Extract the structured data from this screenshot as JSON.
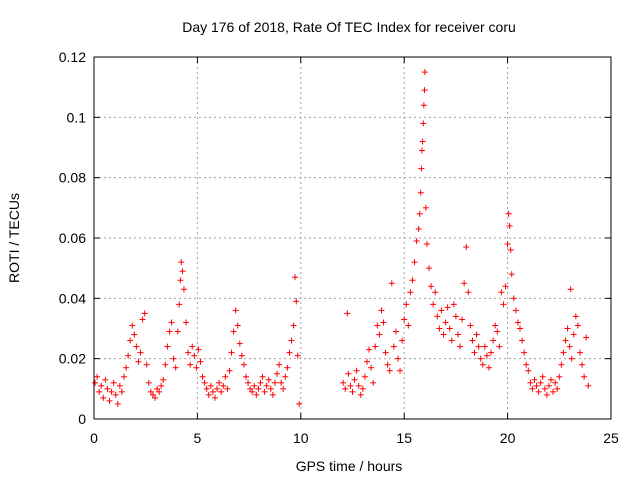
{
  "chart_data": {
    "type": "scatter",
    "title": "Day 176 of 2018, Rate Of TEC Index for receiver coru",
    "xlabel": "GPS time / hours",
    "ylabel": "ROTI / TECUs",
    "xlim": [
      0,
      25
    ],
    "ylim": [
      0,
      0.12
    ],
    "xticks": [
      0,
      5,
      10,
      15,
      20,
      25
    ],
    "xtick_labels": [
      "0",
      "5",
      "10",
      "15",
      "20",
      "25"
    ],
    "yticks": [
      0,
      0.02,
      0.04,
      0.06,
      0.08,
      0.1,
      0.12
    ],
    "ytick_labels": [
      "0",
      "0.02",
      "0.04",
      "0.06",
      "0.08",
      "0.1",
      "0.12"
    ],
    "grid": true,
    "marker": "+",
    "color": "#ff0000",
    "series": [
      {
        "name": "ROTI",
        "points": [
          [
            0.05,
            0.012
          ],
          [
            0.15,
            0.014
          ],
          [
            0.25,
            0.009
          ],
          [
            0.35,
            0.011
          ],
          [
            0.45,
            0.007
          ],
          [
            0.55,
            0.013
          ],
          [
            0.65,
            0.01
          ],
          [
            0.75,
            0.006
          ],
          [
            0.85,
            0.009
          ],
          [
            0.95,
            0.012
          ],
          [
            1.05,
            0.008
          ],
          [
            1.15,
            0.005
          ],
          [
            1.25,
            0.011
          ],
          [
            1.35,
            0.009
          ],
          [
            1.45,
            0.014
          ],
          [
            1.55,
            0.017
          ],
          [
            1.65,
            0.021
          ],
          [
            1.75,
            0.026
          ],
          [
            1.85,
            0.031
          ],
          [
            1.95,
            0.028
          ],
          [
            2.05,
            0.024
          ],
          [
            2.15,
            0.019
          ],
          [
            2.25,
            0.022
          ],
          [
            2.35,
            0.033
          ],
          [
            2.45,
            0.035
          ],
          [
            2.55,
            0.018
          ],
          [
            2.65,
            0.012
          ],
          [
            2.75,
            0.009
          ],
          [
            2.85,
            0.008
          ],
          [
            2.95,
            0.007
          ],
          [
            3.05,
            0.01
          ],
          [
            3.15,
            0.009
          ],
          [
            3.25,
            0.011
          ],
          [
            3.35,
            0.013
          ],
          [
            3.45,
            0.018
          ],
          [
            3.55,
            0.024
          ],
          [
            3.65,
            0.029
          ],
          [
            3.75,
            0.032
          ],
          [
            3.85,
            0.02
          ],
          [
            3.95,
            0.017
          ],
          [
            4.05,
            0.029
          ],
          [
            4.12,
            0.038
          ],
          [
            4.18,
            0.046
          ],
          [
            4.22,
            0.052
          ],
          [
            4.28,
            0.049
          ],
          [
            4.35,
            0.043
          ],
          [
            4.45,
            0.032
          ],
          [
            4.55,
            0.022
          ],
          [
            4.65,
            0.018
          ],
          [
            4.75,
            0.024
          ],
          [
            4.85,
            0.021
          ],
          [
            4.95,
            0.017
          ],
          [
            5.05,
            0.023
          ],
          [
            5.15,
            0.019
          ],
          [
            5.25,
            0.014
          ],
          [
            5.35,
            0.012
          ],
          [
            5.45,
            0.01
          ],
          [
            5.55,
            0.008
          ],
          [
            5.65,
            0.011
          ],
          [
            5.75,
            0.009
          ],
          [
            5.85,
            0.007
          ],
          [
            5.95,
            0.01
          ],
          [
            6.05,
            0.012
          ],
          [
            6.15,
            0.009
          ],
          [
            6.25,
            0.011
          ],
          [
            6.35,
            0.014
          ],
          [
            6.45,
            0.01
          ],
          [
            6.55,
            0.016
          ],
          [
            6.65,
            0.022
          ],
          [
            6.75,
            0.029
          ],
          [
            6.85,
            0.036
          ],
          [
            6.95,
            0.031
          ],
          [
            7.05,
            0.025
          ],
          [
            7.15,
            0.021
          ],
          [
            7.25,
            0.018
          ],
          [
            7.35,
            0.014
          ],
          [
            7.45,
            0.012
          ],
          [
            7.55,
            0.01
          ],
          [
            7.65,
            0.009
          ],
          [
            7.75,
            0.011
          ],
          [
            7.85,
            0.008
          ],
          [
            7.95,
            0.01
          ],
          [
            8.05,
            0.012
          ],
          [
            8.15,
            0.014
          ],
          [
            8.25,
            0.009
          ],
          [
            8.35,
            0.011
          ],
          [
            8.45,
            0.013
          ],
          [
            8.55,
            0.01
          ],
          [
            8.65,
            0.008
          ],
          [
            8.75,
            0.012
          ],
          [
            8.85,
            0.015
          ],
          [
            8.95,
            0.018
          ],
          [
            9.05,
            0.012
          ],
          [
            9.15,
            0.01
          ],
          [
            9.25,
            0.014
          ],
          [
            9.35,
            0.017
          ],
          [
            9.45,
            0.022
          ],
          [
            9.55,
            0.026
          ],
          [
            9.65,
            0.031
          ],
          [
            9.72,
            0.047
          ],
          [
            9.78,
            0.039
          ],
          [
            9.85,
            0.021
          ],
          [
            9.92,
            0.005
          ],
          [
            12.05,
            0.012
          ],
          [
            12.15,
            0.01
          ],
          [
            12.25,
            0.035
          ],
          [
            12.3,
            0.015
          ],
          [
            12.4,
            0.011
          ],
          [
            12.5,
            0.009
          ],
          [
            12.6,
            0.013
          ],
          [
            12.7,
            0.016
          ],
          [
            12.8,
            0.011
          ],
          [
            12.9,
            0.008
          ],
          [
            13.0,
            0.01
          ],
          [
            13.1,
            0.014
          ],
          [
            13.2,
            0.019
          ],
          [
            13.3,
            0.023
          ],
          [
            13.4,
            0.017
          ],
          [
            13.5,
            0.012
          ],
          [
            13.6,
            0.024
          ],
          [
            13.7,
            0.031
          ],
          [
            13.8,
            0.028
          ],
          [
            13.9,
            0.036
          ],
          [
            14.0,
            0.032
          ],
          [
            14.1,
            0.022
          ],
          [
            14.2,
            0.018
          ],
          [
            14.3,
            0.016
          ],
          [
            14.4,
            0.045
          ],
          [
            14.5,
            0.024
          ],
          [
            14.6,
            0.029
          ],
          [
            14.7,
            0.02
          ],
          [
            14.8,
            0.016
          ],
          [
            14.9,
            0.026
          ],
          [
            15.0,
            0.033
          ],
          [
            15.1,
            0.038
          ],
          [
            15.2,
            0.031
          ],
          [
            15.3,
            0.042
          ],
          [
            15.4,
            0.046
          ],
          [
            15.5,
            0.052
          ],
          [
            15.6,
            0.059
          ],
          [
            15.7,
            0.063
          ],
          [
            15.75,
            0.068
          ],
          [
            15.8,
            0.075
          ],
          [
            15.83,
            0.083
          ],
          [
            15.86,
            0.089
          ],
          [
            15.89,
            0.092
          ],
          [
            15.92,
            0.098
          ],
          [
            15.95,
            0.104
          ],
          [
            15.98,
            0.109
          ],
          [
            16.0,
            0.115
          ],
          [
            16.05,
            0.07
          ],
          [
            16.1,
            0.058
          ],
          [
            16.2,
            0.05
          ],
          [
            16.3,
            0.044
          ],
          [
            16.4,
            0.038
          ],
          [
            16.5,
            0.042
          ],
          [
            16.6,
            0.034
          ],
          [
            16.7,
            0.03
          ],
          [
            16.8,
            0.036
          ],
          [
            16.9,
            0.028
          ],
          [
            17.0,
            0.032
          ],
          [
            17.1,
            0.037
          ],
          [
            17.2,
            0.03
          ],
          [
            17.3,
            0.026
          ],
          [
            17.4,
            0.038
          ],
          [
            17.5,
            0.034
          ],
          [
            17.6,
            0.028
          ],
          [
            17.7,
            0.024
          ],
          [
            17.8,
            0.033
          ],
          [
            17.9,
            0.045
          ],
          [
            18.0,
            0.057
          ],
          [
            18.1,
            0.042
          ],
          [
            18.2,
            0.031
          ],
          [
            18.3,
            0.026
          ],
          [
            18.4,
            0.022
          ],
          [
            18.5,
            0.028
          ],
          [
            18.6,
            0.024
          ],
          [
            18.7,
            0.02
          ],
          [
            18.8,
            0.018
          ],
          [
            18.9,
            0.024
          ],
          [
            19.0,
            0.021
          ],
          [
            19.1,
            0.017
          ],
          [
            19.2,
            0.022
          ],
          [
            19.3,
            0.026
          ],
          [
            19.4,
            0.031
          ],
          [
            19.5,
            0.029
          ],
          [
            19.6,
            0.024
          ],
          [
            19.7,
            0.042
          ],
          [
            19.8,
            0.038
          ],
          [
            19.9,
            0.044
          ],
          [
            20.0,
            0.058
          ],
          [
            20.05,
            0.068
          ],
          [
            20.1,
            0.064
          ],
          [
            20.15,
            0.056
          ],
          [
            20.2,
            0.048
          ],
          [
            20.3,
            0.04
          ],
          [
            20.4,
            0.036
          ],
          [
            20.5,
            0.032
          ],
          [
            20.6,
            0.03
          ],
          [
            20.7,
            0.026
          ],
          [
            20.8,
            0.022
          ],
          [
            20.9,
            0.018
          ],
          [
            21.0,
            0.016
          ],
          [
            21.1,
            0.012
          ],
          [
            21.2,
            0.01
          ],
          [
            21.3,
            0.013
          ],
          [
            21.4,
            0.011
          ],
          [
            21.5,
            0.009
          ],
          [
            21.6,
            0.012
          ],
          [
            21.7,
            0.014
          ],
          [
            21.8,
            0.01
          ],
          [
            21.9,
            0.008
          ],
          [
            22.0,
            0.011
          ],
          [
            22.1,
            0.013
          ],
          [
            22.2,
            0.009
          ],
          [
            22.3,
            0.012
          ],
          [
            22.4,
            0.01
          ],
          [
            22.5,
            0.014
          ],
          [
            22.6,
            0.018
          ],
          [
            22.7,
            0.022
          ],
          [
            22.8,
            0.026
          ],
          [
            22.9,
            0.03
          ],
          [
            23.0,
            0.024
          ],
          [
            23.05,
            0.043
          ],
          [
            23.1,
            0.02
          ],
          [
            23.2,
            0.028
          ],
          [
            23.3,
            0.034
          ],
          [
            23.4,
            0.031
          ],
          [
            23.5,
            0.022
          ],
          [
            23.6,
            0.018
          ],
          [
            23.7,
            0.014
          ],
          [
            23.8,
            0.027
          ],
          [
            23.9,
            0.011
          ]
        ]
      }
    ]
  }
}
